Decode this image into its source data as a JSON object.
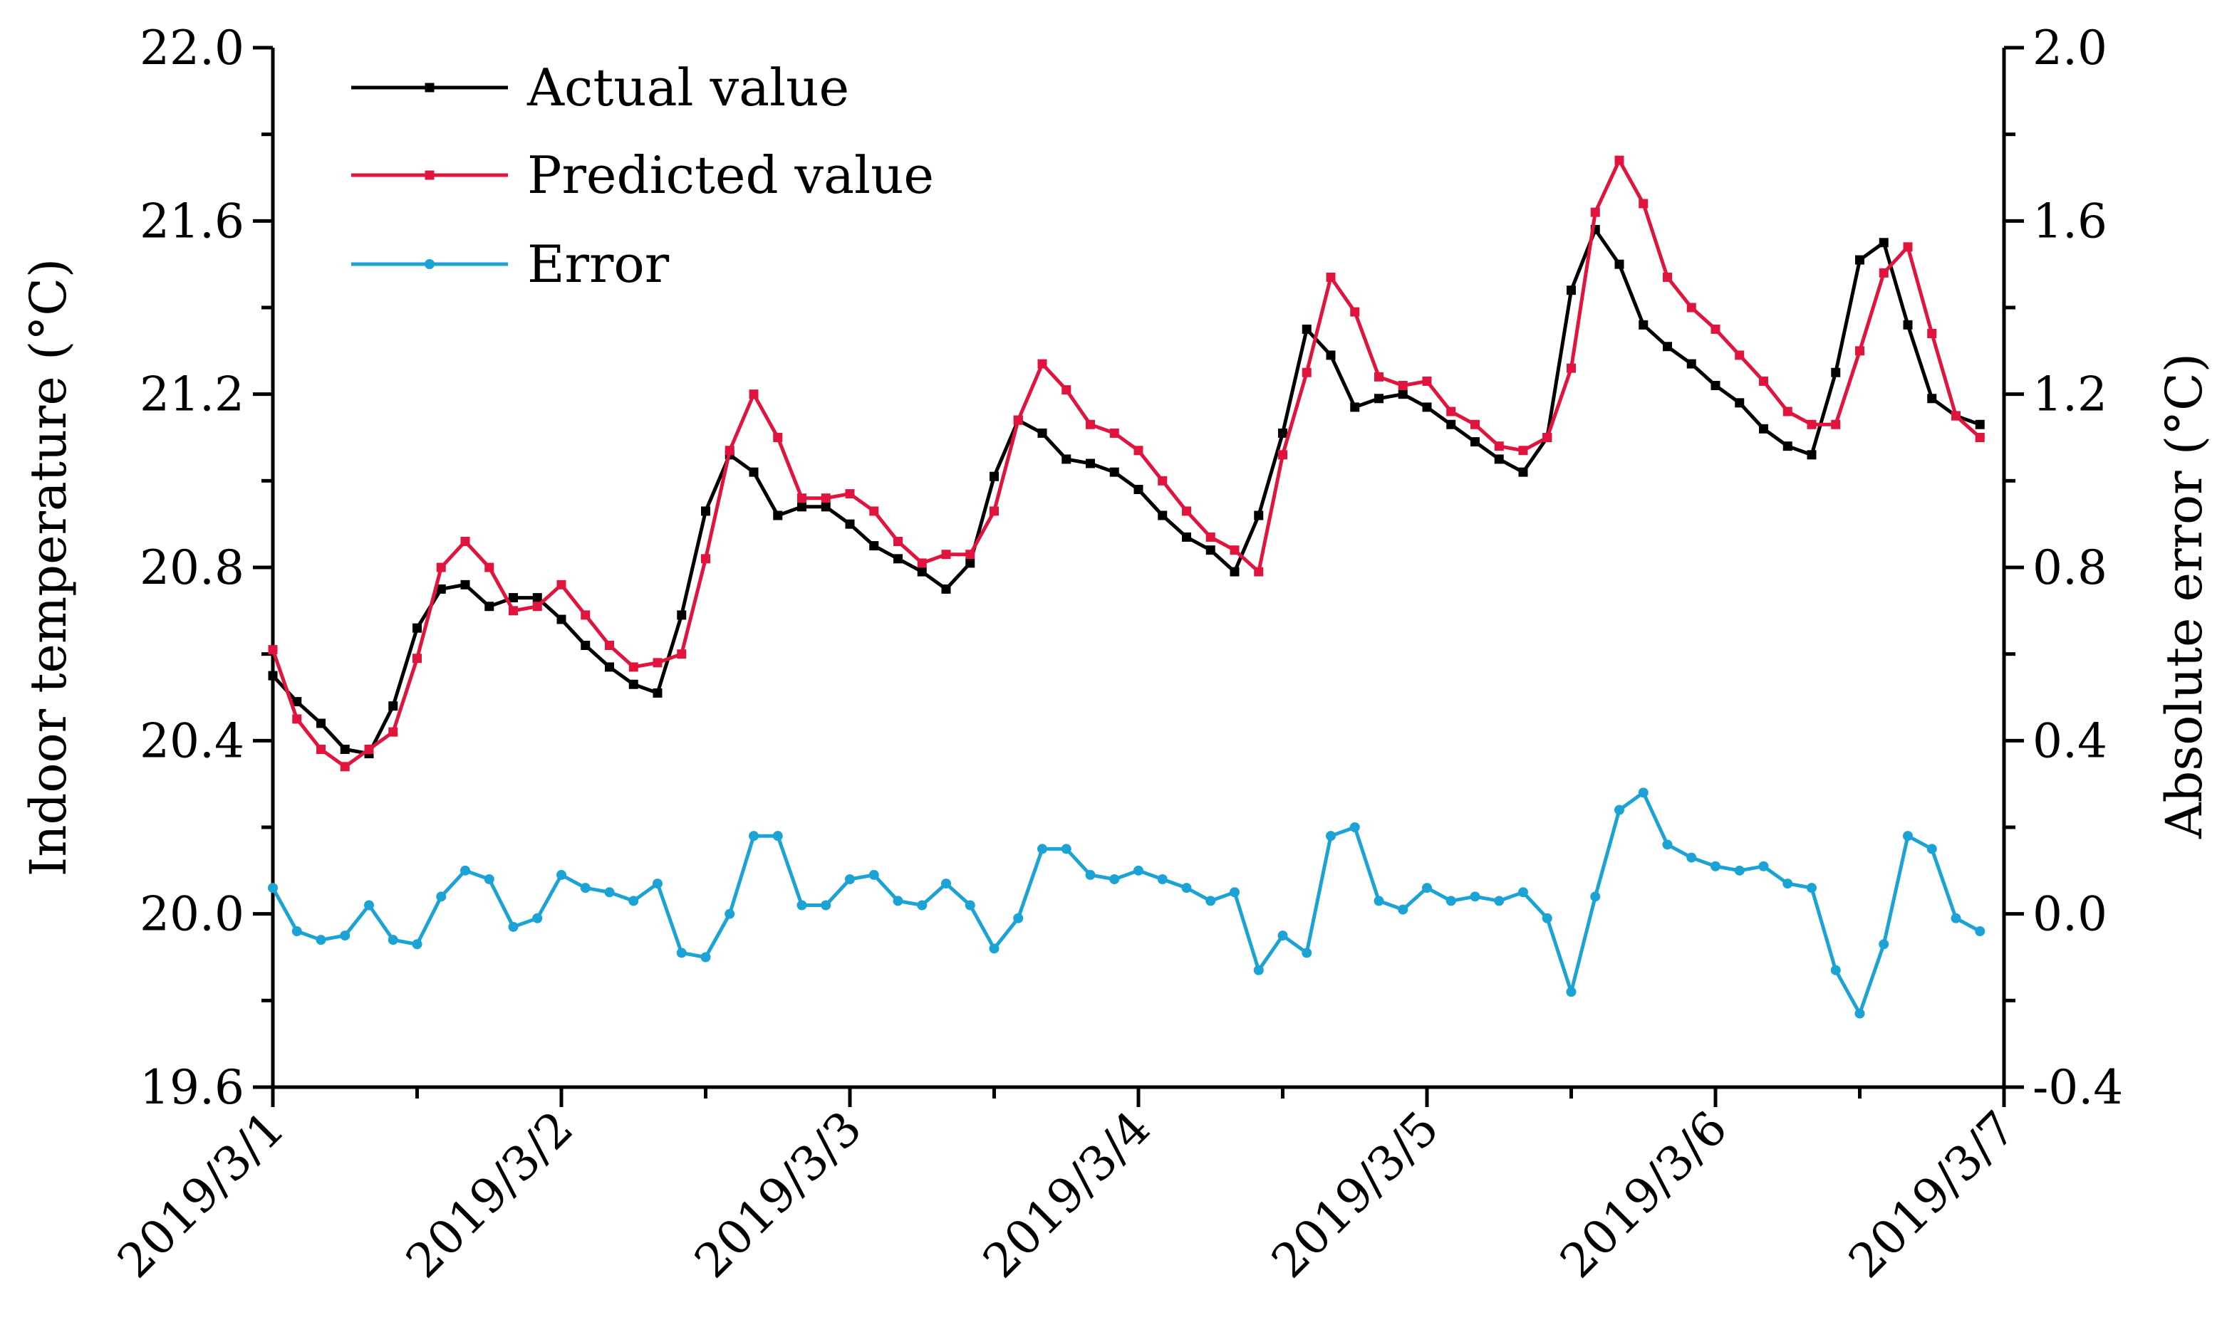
{
  "chart_data": {
    "type": "line",
    "title": "",
    "xlabel": "",
    "ylabel": "Indoor temperature (°C)",
    "ylabel_right": "Absolute error (°C)",
    "ylim": [
      19.6,
      22.0
    ],
    "ylim_right": [
      -0.4,
      2.0
    ],
    "y_ticks": [
      "19.6",
      "20.0",
      "20.4",
      "20.8",
      "21.2",
      "21.6",
      "22.0"
    ],
    "y_ticks_right": [
      "-0.4",
      "0.0",
      "0.4",
      "0.8",
      "1.2",
      "1.6",
      "2.0"
    ],
    "x_ticks": [
      "2019/3/1",
      "2019/3/2",
      "2019/3/3",
      "2019/3/4",
      "2019/3/5",
      "2019/3/6",
      "2019/3/7"
    ],
    "x_range_days": [
      0,
      6
    ],
    "sample_interval_hours": 2,
    "legend_position": "top-left",
    "series": [
      {
        "name": "Actual value",
        "axis": "left",
        "color": "#000000",
        "marker": "square",
        "values": [
          20.55,
          20.49,
          20.44,
          20.38,
          20.37,
          20.48,
          20.66,
          20.75,
          20.76,
          20.71,
          20.73,
          20.73,
          20.68,
          20.62,
          20.57,
          20.53,
          20.51,
          20.69,
          20.93,
          21.06,
          21.02,
          20.92,
          20.94,
          20.94,
          20.9,
          20.85,
          20.82,
          20.79,
          20.75,
          20.81,
          21.01,
          21.14,
          21.11,
          21.05,
          21.04,
          21.02,
          20.98,
          20.92,
          20.87,
          20.84,
          20.79,
          20.92,
          21.11,
          21.35,
          21.29,
          21.17,
          21.19,
          21.2,
          21.17,
          21.13,
          21.09,
          21.05,
          21.02,
          21.1,
          21.44,
          21.58,
          21.5,
          21.36,
          21.31,
          21.27,
          21.22,
          21.18,
          21.12,
          21.08,
          21.06,
          21.25,
          21.51,
          21.55,
          21.36,
          21.19,
          21.15,
          21.13
        ]
      },
      {
        "name": "Predicted value",
        "axis": "left",
        "color": "#E0143C",
        "marker": "square",
        "values": [
          20.61,
          20.45,
          20.38,
          20.34,
          20.38,
          20.42,
          20.59,
          20.8,
          20.86,
          20.8,
          20.7,
          20.71,
          20.76,
          20.69,
          20.62,
          20.57,
          20.58,
          20.6,
          20.82,
          21.07,
          21.2,
          21.1,
          20.96,
          20.96,
          20.97,
          20.93,
          20.86,
          20.81,
          20.83,
          20.83,
          20.93,
          21.14,
          21.27,
          21.21,
          21.13,
          21.11,
          21.07,
          21.0,
          20.93,
          20.87,
          20.84,
          20.79,
          21.06,
          21.25,
          21.47,
          21.39,
          21.24,
          21.22,
          21.23,
          21.16,
          21.13,
          21.08,
          21.07,
          21.1,
          21.26,
          21.62,
          21.74,
          21.64,
          21.47,
          21.4,
          21.35,
          21.29,
          21.23,
          21.16,
          21.13,
          21.13,
          21.3,
          21.48,
          21.54,
          21.34,
          21.15,
          21.1
        ]
      },
      {
        "name": "Error",
        "axis": "right",
        "color": "#1BA3D6",
        "marker": "circle",
        "values": [
          0.06,
          -0.04,
          -0.06,
          -0.05,
          0.02,
          -0.06,
          -0.07,
          0.04,
          0.1,
          0.08,
          -0.03,
          -0.01,
          0.09,
          0.06,
          0.05,
          0.03,
          0.07,
          -0.09,
          -0.1,
          0.0,
          0.18,
          0.18,
          0.02,
          0.02,
          0.08,
          0.09,
          0.03,
          0.02,
          0.07,
          0.02,
          -0.08,
          -0.01,
          0.15,
          0.15,
          0.09,
          0.08,
          0.1,
          0.08,
          0.06,
          0.03,
          0.05,
          -0.13,
          -0.05,
          -0.09,
          0.18,
          0.2,
          0.03,
          0.01,
          0.06,
          0.03,
          0.04,
          0.03,
          0.05,
          -0.01,
          -0.18,
          0.04,
          0.24,
          0.28,
          0.16,
          0.13,
          0.11,
          0.1,
          0.11,
          0.07,
          0.06,
          -0.13,
          -0.23,
          -0.07,
          0.18,
          0.15,
          -0.01,
          -0.04
        ]
      }
    ]
  }
}
